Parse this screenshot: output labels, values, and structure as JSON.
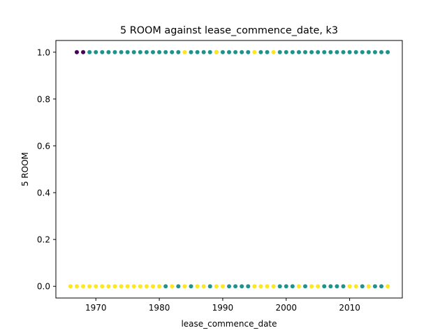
{
  "chart_data": {
    "type": "scatter",
    "title": "5 ROOM against lease_commence_date, k3",
    "xlabel": "lease_commence_date",
    "ylabel": "5 ROOM",
    "xlim": [
      1963.7,
      2018.3
    ],
    "ylim": [
      -0.05,
      1.05
    ],
    "xticks": [
      1970,
      1980,
      1990,
      2000,
      2010
    ],
    "yticks": [
      0.0,
      0.2,
      0.4,
      0.6,
      0.8,
      1.0
    ],
    "xtick_labels": [
      "1970",
      "1980",
      "1990",
      "2000",
      "2010"
    ],
    "ytick_labels": [
      "0.0",
      "0.2",
      "0.4",
      "0.6",
      "0.8",
      "1.0"
    ],
    "grid": false,
    "legend": null,
    "colormap": "viridis",
    "cluster_colors": [
      "#440154",
      "#21918c",
      "#fde725"
    ],
    "series": [
      {
        "cluster": 0,
        "color": "#440154",
        "points": [
          [
            1967,
            1
          ],
          [
            1968,
            1
          ]
        ]
      },
      {
        "cluster": 1,
        "color": "#21918c",
        "points": [
          [
            1969,
            1
          ],
          [
            1970,
            1
          ],
          [
            1971,
            1
          ],
          [
            1972,
            1
          ],
          [
            1973,
            1
          ],
          [
            1974,
            1
          ],
          [
            1975,
            1
          ],
          [
            1976,
            1
          ],
          [
            1977,
            1
          ],
          [
            1978,
            1
          ],
          [
            1979,
            1
          ],
          [
            1980,
            1
          ],
          [
            1981,
            1
          ],
          [
            1982,
            1
          ],
          [
            1983,
            1
          ],
          [
            1985,
            1
          ],
          [
            1986,
            1
          ],
          [
            1987,
            1
          ],
          [
            1988,
            1
          ],
          [
            1989,
            1
          ],
          [
            1990,
            1
          ],
          [
            1991,
            1
          ],
          [
            1992,
            1
          ],
          [
            1993,
            1
          ],
          [
            1994,
            1
          ],
          [
            1996,
            1
          ],
          [
            1997,
            1
          ],
          [
            1999,
            1
          ],
          [
            2000,
            1
          ],
          [
            2001,
            1
          ],
          [
            2002,
            1
          ],
          [
            2003,
            1
          ],
          [
            2004,
            1
          ],
          [
            2005,
            1
          ],
          [
            2006,
            1
          ],
          [
            2007,
            1
          ],
          [
            2008,
            1
          ],
          [
            2009,
            1
          ],
          [
            2010,
            1
          ],
          [
            2011,
            1
          ],
          [
            2012,
            1
          ],
          [
            2013,
            1
          ],
          [
            2014,
            1
          ],
          [
            2015,
            1
          ],
          [
            2016,
            1
          ],
          [
            1981,
            0
          ],
          [
            1983,
            0
          ],
          [
            1985,
            0
          ],
          [
            1988,
            0
          ],
          [
            1991,
            0
          ],
          [
            1992,
            0
          ],
          [
            1993,
            0
          ],
          [
            1994,
            0
          ],
          [
            1999,
            0
          ],
          [
            2000,
            0
          ],
          [
            2001,
            0
          ],
          [
            2003,
            0
          ],
          [
            2006,
            0
          ],
          [
            2007,
            0
          ],
          [
            2008,
            0
          ],
          [
            2009,
            0
          ],
          [
            2012,
            0
          ],
          [
            2014,
            0
          ],
          [
            2015,
            0
          ]
        ]
      },
      {
        "cluster": 2,
        "color": "#fde725",
        "points": [
          [
            1984,
            1
          ],
          [
            1989,
            1
          ],
          [
            1995,
            1
          ],
          [
            1998,
            1
          ],
          [
            1966,
            0
          ],
          [
            1967,
            0
          ],
          [
            1968,
            0
          ],
          [
            1969,
            0
          ],
          [
            1970,
            0
          ],
          [
            1971,
            0
          ],
          [
            1972,
            0
          ],
          [
            1973,
            0
          ],
          [
            1974,
            0
          ],
          [
            1975,
            0
          ],
          [
            1976,
            0
          ],
          [
            1977,
            0
          ],
          [
            1978,
            0
          ],
          [
            1979,
            0
          ],
          [
            1980,
            0
          ],
          [
            1982,
            0
          ],
          [
            1984,
            0
          ],
          [
            1986,
            0
          ],
          [
            1987,
            0
          ],
          [
            1989,
            0
          ],
          [
            1990,
            0
          ],
          [
            1995,
            0
          ],
          [
            1996,
            0
          ],
          [
            1997,
            0
          ],
          [
            1998,
            0
          ],
          [
            2002,
            0
          ],
          [
            2004,
            0
          ],
          [
            2005,
            0
          ],
          [
            2010,
            0
          ],
          [
            2011,
            0
          ],
          [
            2013,
            0
          ],
          [
            2016,
            0
          ]
        ]
      }
    ]
  }
}
